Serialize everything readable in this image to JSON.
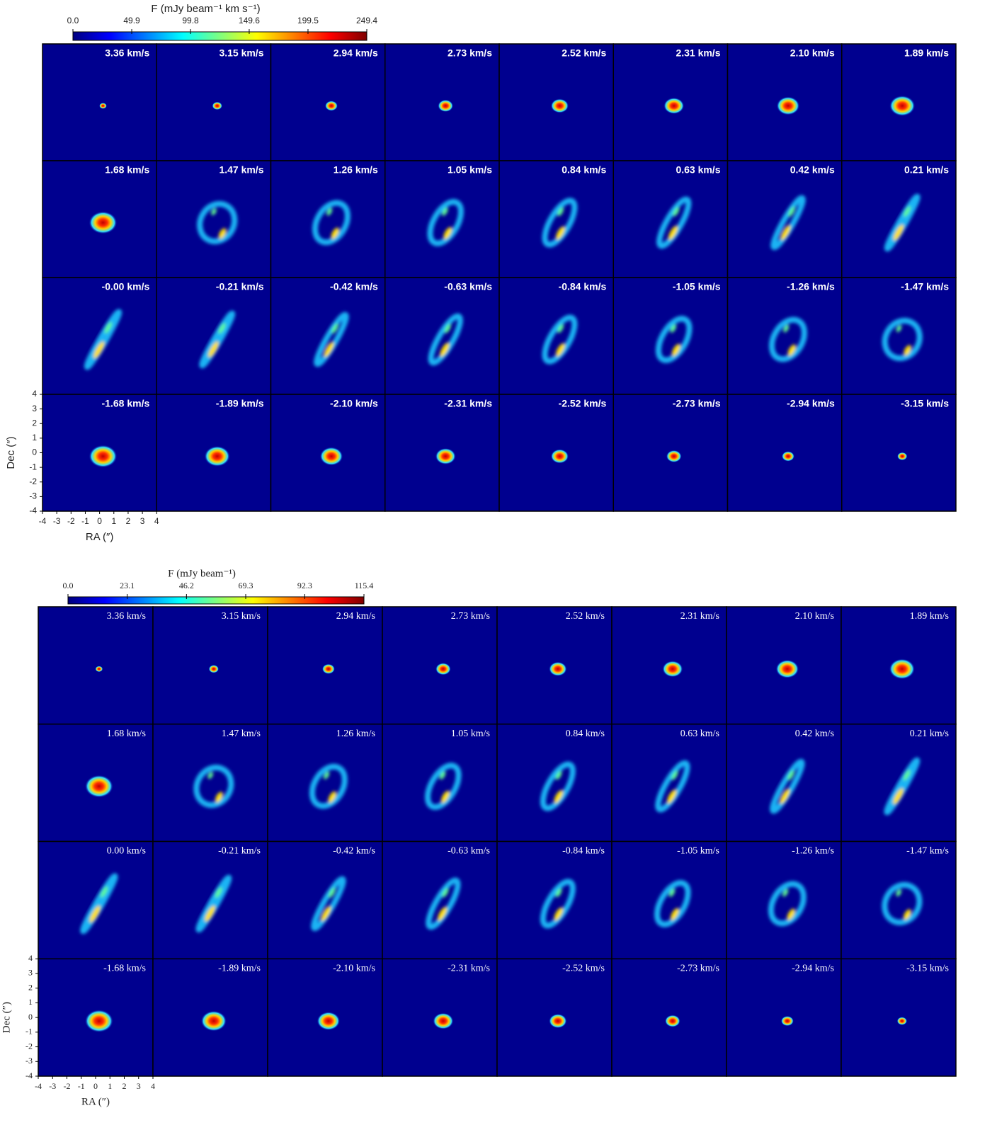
{
  "figures": [
    {
      "colorbar": {
        "label": "F  (mJy beam⁻¹ km s⁻¹)",
        "colormap": "jet",
        "ticks": [
          {
            "value": 0,
            "label": "0.0"
          },
          49.9,
          99.8,
          149.6,
          199.5,
          249.4
        ]
      },
      "panels": [
        "3.36 km/s",
        "3.15 km/s",
        "2.94 km/s",
        "2.73 km/s",
        "2.52 km/s",
        "2.31 km/s",
        "2.10 km/s",
        "1.89 km/s",
        "1.68 km/s",
        "1.47 km/s",
        "1.26 km/s",
        "1.05 km/s",
        "0.84 km/s",
        "0.63 km/s",
        "0.42 km/s",
        "0.21 km/s",
        "-0.00 km/s",
        "-0.21 km/s",
        "-0.42 km/s",
        "-0.63 km/s",
        "-0.84 km/s",
        "-1.05 km/s",
        "-1.26 km/s",
        "-1.47 km/s",
        "-1.68 km/s",
        "-1.89 km/s",
        "-2.10 km/s",
        "-2.31 km/s",
        "-2.52 km/s",
        "-2.73 km/s",
        "-2.94 km/s",
        "-3.15 km/s"
      ],
      "x_label": "RA  (″)",
      "y_label": "Dec  (″)",
      "xlim": [
        -4,
        4
      ],
      "ylim": [
        -4,
        4
      ],
      "xticks": [
        -4,
        -3,
        -2,
        -1,
        0,
        1,
        2,
        3,
        4
      ],
      "yticks": [
        -4,
        -3,
        -2,
        -1,
        0,
        1,
        2,
        3,
        4
      ]
    },
    {
      "colorbar": {
        "label": "F  (mJy beam⁻¹)",
        "colormap": "jet",
        "ticks": [
          {
            "value": 0,
            "label": "0.0"
          },
          23.1,
          46.2,
          69.3,
          92.3,
          115.4
        ]
      },
      "panels": [
        "3.36 km/s",
        "3.15 km/s",
        "2.94 km/s",
        "2.73 km/s",
        "2.52 km/s",
        "2.31 km/s",
        "2.10 km/s",
        "1.89 km/s",
        "1.68 km/s",
        "1.47 km/s",
        "1.26 km/s",
        "1.05 km/s",
        "0.84 km/s",
        "0.63 km/s",
        "0.42 km/s",
        "0.21 km/s",
        "0.00 km/s",
        "-0.21 km/s",
        "-0.42 km/s",
        "-0.63 km/s",
        "-0.84 km/s",
        "-1.05 km/s",
        "-1.26 km/s",
        "-1.47 km/s",
        "-1.68 km/s",
        "-1.89 km/s",
        "-2.10 km/s",
        "-2.31 km/s",
        "-2.52 km/s",
        "-2.73 km/s",
        "-2.94 km/s",
        "-3.15 km/s"
      ],
      "x_label": "RA  (″)",
      "y_label": "Dec  (″)",
      "xlim": [
        -4,
        4
      ],
      "ylim": [
        -4,
        4
      ],
      "xticks": [
        -4,
        -3,
        -2,
        -1,
        0,
        1,
        2,
        3,
        4
      ],
      "yticks": [
        -4,
        -3,
        -2,
        -1,
        0,
        1,
        2,
        3,
        4
      ]
    }
  ]
}
